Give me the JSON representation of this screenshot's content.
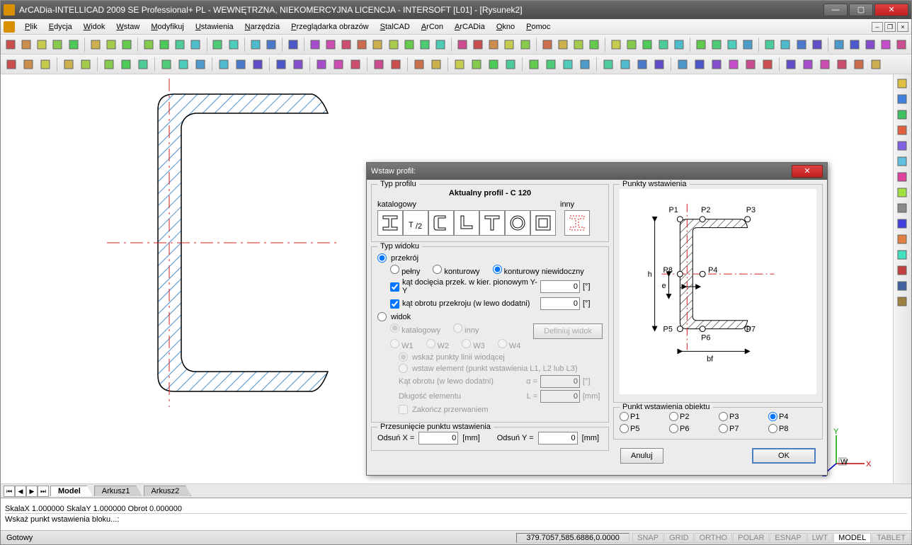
{
  "window": {
    "title": "ArCADia-INTELLICAD 2009 SE Professional+ PL - WEWNĘTRZNA, NIEKOMERCYJNA LICENCJA - INTERSOFT [L01] - [Rysunek2]"
  },
  "menu": {
    "items": [
      "Plik",
      "Edycja",
      "Widok",
      "Wstaw",
      "Modyfikuj",
      "Ustawienia",
      "Narzędzia",
      "Przeglądarka obrazów",
      "StalCAD",
      "ArCon",
      "ArCADia",
      "Okno",
      "Pomoc"
    ]
  },
  "tabs": {
    "items": [
      "Model",
      "Arkusz1",
      "Arkusz2"
    ],
    "active": 0
  },
  "cmd": {
    "line1": "SkalaX 1.000000 SkalaY 1.000000 Obrot 0.000000",
    "line2": "Wskaż punkt wstawienia bloku...:"
  },
  "status": {
    "ready": "Gotowy",
    "coords": "379.7057,585.6886,0.0000",
    "toggles": [
      "SNAP",
      "GRID",
      "ORTHO",
      "POLAR",
      "ESNAP",
      "LWT",
      "MODEL",
      "TABLET"
    ],
    "active_toggle": 6
  },
  "dialog": {
    "title": "Wstaw profil:",
    "group_profile": "Typ profilu",
    "profile_title": "Aktualny profil - C 120",
    "catalog_label": "katalogowy",
    "other_label": "inny",
    "group_view": "Typ widoku",
    "view_mode_section": "przekrój",
    "view_full": "pełny",
    "view_contour": "konturowy",
    "view_contour_inv": "konturowy niewidoczny",
    "chk_cut_angle": "kąt docięcia przek. w kier. pionowym Y-Y",
    "cut_angle_val": "0",
    "cut_angle_unit": "[°]",
    "chk_rot_angle": "kąt obrotu przekroju (w lewo dodatni)",
    "rot_angle_val": "0",
    "rot_angle_unit": "[°]",
    "view_mode_view": "widok",
    "view_catalog": "katalogowy",
    "view_other": "inny",
    "define_view_btn": "Definiuj widok",
    "w1": "W1",
    "w2": "W2",
    "w3": "W3",
    "w4": "W4",
    "show_points": "wskaż punkty linii wiodącej",
    "insert_elem": "wstaw element (punkt wstawienia L1, L2 lub L3)",
    "rot_label": "Kąt obrotu (w lewo dodatni)",
    "alpha": "α =",
    "rot_val": "0",
    "rot_unit": "[°]",
    "len_label": "Długość elementu",
    "len_sym": "L =",
    "len_val": "0",
    "len_unit": "[mm]",
    "finish_break": "Zakończ przerwaniem",
    "group_offset": "Przesunięcie punktu wstawienia",
    "offset_x": "Odsuń X =",
    "offset_x_val": "0",
    "offset_y": "Odsuń Y =",
    "offset_y_val": "0",
    "mm": "[mm]",
    "group_points": "Punkty wstawienia",
    "group_pt_obj": "Punkt wstawienia obiektu",
    "p_labels": [
      "P1",
      "P2",
      "P3",
      "P4",
      "P5",
      "P6",
      "P7",
      "P8"
    ],
    "p_selected": 3,
    "btn_cancel": "Anuluj",
    "btn_ok": "OK",
    "diag_labels": {
      "p1": "P1",
      "p2": "P2",
      "p3": "P3",
      "p4": "P4",
      "p5": "P5",
      "p6": "P6",
      "p7": "P7",
      "p8": "P8",
      "h": "h",
      "e": "e",
      "bf": "bf"
    }
  },
  "colors": {
    "hatch": "#4a90d0",
    "axis_red": "#d02020",
    "ucs_y": "#00a000",
    "ucs_x": "#c00000",
    "ucs_z": "#0000c0"
  }
}
